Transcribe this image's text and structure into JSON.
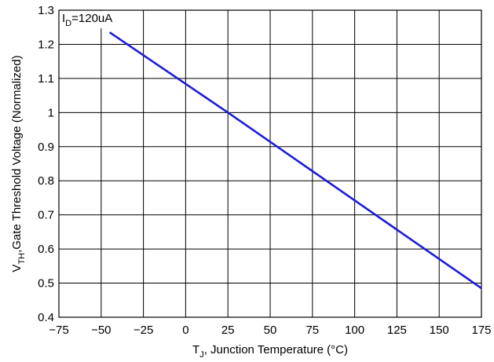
{
  "chart_data": {
    "type": "line",
    "xlabel": {
      "main": "T",
      "sub": "J",
      "rest": ", Junction Temperature (°C)"
    },
    "ylabel": {
      "main": "V",
      "sub": "TH",
      "rest": ",Gate Threshold Voltage (Normalized)"
    },
    "annotation": {
      "main": "I",
      "sub": "D",
      "rest": "=120uA"
    },
    "xlim": [
      -75,
      175
    ],
    "ylim": [
      0.4,
      1.3
    ],
    "xticks": [
      "−75",
      "−50",
      "−25",
      "0",
      "25",
      "50",
      "75",
      "100",
      "125",
      "150",
      "175"
    ],
    "yticks": [
      "0.4",
      "0.5",
      "0.6",
      "0.7",
      "0.8",
      "0.9",
      "1",
      "1.1",
      "1.2",
      "1.3"
    ],
    "grid": true,
    "series": [
      {
        "x": [
          -45,
          25,
          175
        ],
        "y": [
          1.235,
          1.0,
          0.485
        ]
      }
    ],
    "line_color": "#1c1cd6"
  }
}
